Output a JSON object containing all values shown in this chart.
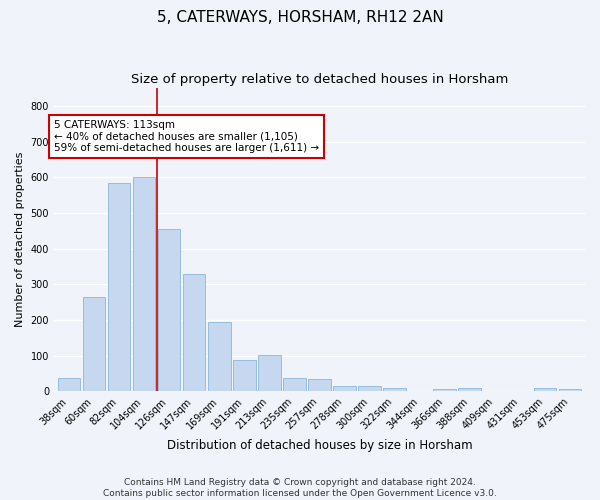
{
  "title": "5, CATERWAYS, HORSHAM, RH12 2AN",
  "subtitle": "Size of property relative to detached houses in Horsham",
  "xlabel": "Distribution of detached houses by size in Horsham",
  "ylabel": "Number of detached properties",
  "categories": [
    "38sqm",
    "60sqm",
    "82sqm",
    "104sqm",
    "126sqm",
    "147sqm",
    "169sqm",
    "191sqm",
    "213sqm",
    "235sqm",
    "257sqm",
    "278sqm",
    "300sqm",
    "322sqm",
    "344sqm",
    "366sqm",
    "388sqm",
    "409sqm",
    "431sqm",
    "453sqm",
    "475sqm"
  ],
  "values": [
    37,
    265,
    585,
    602,
    455,
    330,
    195,
    88,
    102,
    37,
    35,
    15,
    14,
    10,
    0,
    7,
    10,
    0,
    0,
    8,
    7
  ],
  "bar_color": "#c5d8f0",
  "bar_edge_color": "#7aadd4",
  "bar_linewidth": 0.5,
  "vline_x_index": 3.5,
  "vline_color": "#cc0000",
  "annotation_text": "5 CATERWAYS: 113sqm\n← 40% of detached houses are smaller (1,105)\n59% of semi-detached houses are larger (1,611) →",
  "annotation_box_color": "#ffffff",
  "annotation_box_edge_color": "#cc0000",
  "ylim": [
    0,
    850
  ],
  "yticks": [
    0,
    100,
    200,
    300,
    400,
    500,
    600,
    700,
    800
  ],
  "background_color": "#f0f4fa",
  "plot_bg_color": "#f0f4fa",
  "grid_color": "#ffffff",
  "footnote": "Contains HM Land Registry data © Crown copyright and database right 2024.\nContains public sector information licensed under the Open Government Licence v3.0.",
  "title_fontsize": 11,
  "subtitle_fontsize": 9.5,
  "xlabel_fontsize": 8.5,
  "ylabel_fontsize": 8,
  "tick_fontsize": 7,
  "annotation_fontsize": 7.5,
  "footnote_fontsize": 6.5
}
